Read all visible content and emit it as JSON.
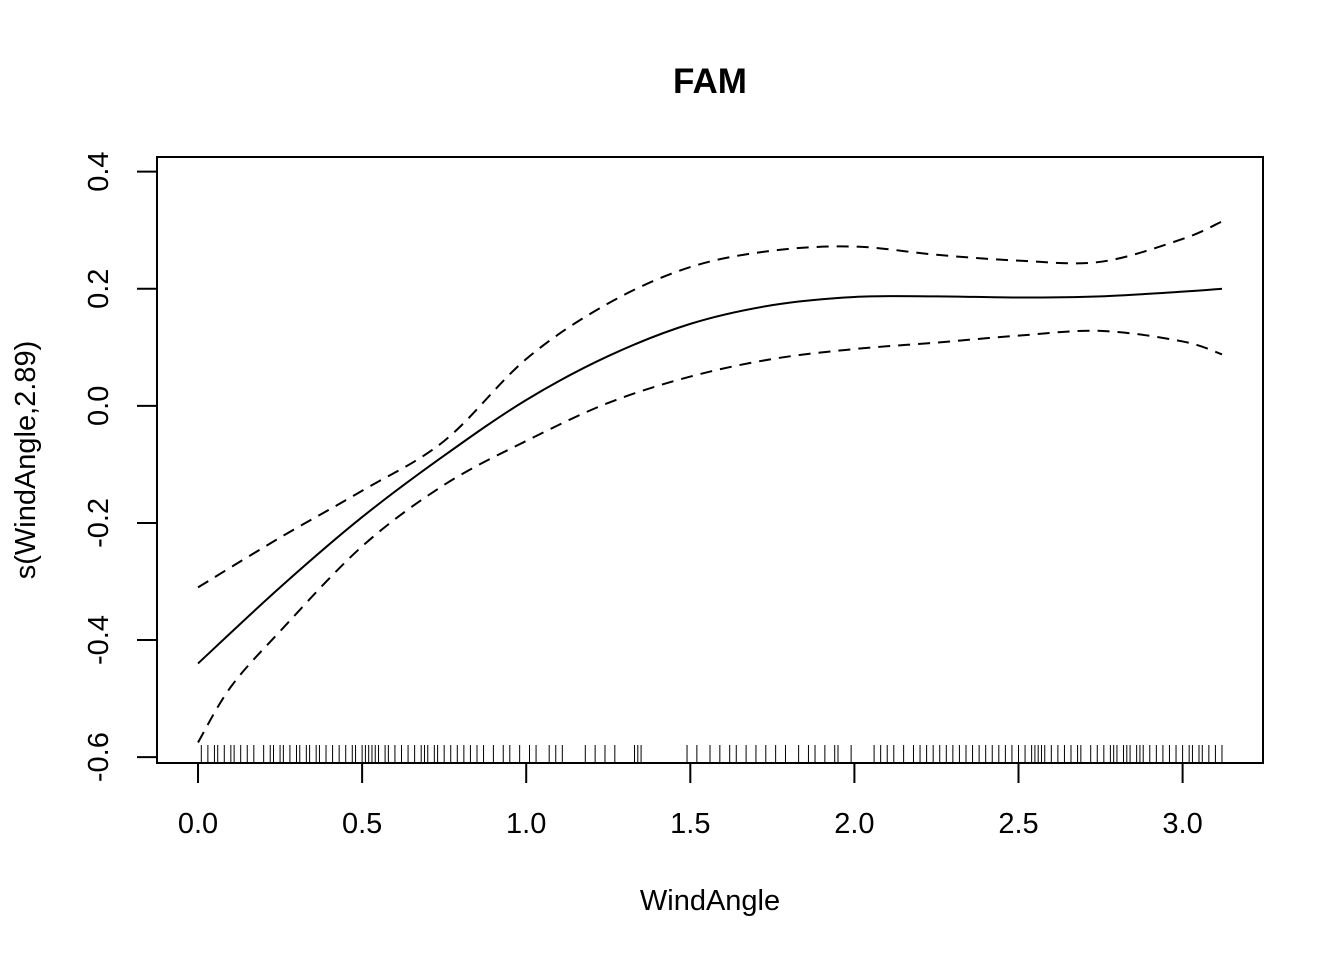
{
  "chart_data": {
    "type": "line",
    "title": "FAM",
    "xlabel": "WindAngle",
    "ylabel": "s(WindAngle,2.89)",
    "xlim": [
      -0.125,
      3.245
    ],
    "ylim": [
      -0.61,
      0.425
    ],
    "x_ticks": [
      "0.0",
      "0.5",
      "1.0",
      "1.5",
      "2.0",
      "2.5",
      "3.0"
    ],
    "x_tick_values": [
      0.0,
      0.5,
      1.0,
      1.5,
      2.0,
      2.5,
      3.0
    ],
    "y_ticks": [
      "-0.6",
      "-0.4",
      "-0.2",
      "0.0",
      "0.2",
      "0.4"
    ],
    "y_tick_values": [
      -0.6,
      -0.4,
      -0.2,
      0.0,
      0.2,
      0.4
    ],
    "grid": false,
    "series": [
      {
        "style": "solid",
        "x": [
          0.0,
          0.25,
          0.5,
          0.75,
          1.0,
          1.25,
          1.5,
          1.75,
          2.0,
          2.25,
          2.5,
          2.75,
          3.0,
          3.12
        ],
        "y": [
          -0.44,
          -0.31,
          -0.19,
          -0.085,
          0.01,
          0.085,
          0.14,
          0.172,
          0.186,
          0.187,
          0.185,
          0.187,
          0.195,
          0.2
        ]
      },
      {
        "style": "dashed",
        "x": [
          0.0,
          0.25,
          0.5,
          0.75,
          1.0,
          1.25,
          1.5,
          1.75,
          2.0,
          2.25,
          2.5,
          2.75,
          3.0,
          3.12
        ],
        "y": [
          -0.31,
          -0.225,
          -0.145,
          -0.06,
          0.08,
          0.175,
          0.237,
          0.265,
          0.272,
          0.258,
          0.248,
          0.246,
          0.285,
          0.315
        ]
      },
      {
        "style": "dashed",
        "x": [
          0.0,
          0.1,
          0.25,
          0.5,
          0.75,
          1.0,
          1.25,
          1.5,
          1.75,
          2.0,
          2.25,
          2.5,
          2.75,
          3.0,
          3.12
        ],
        "y": [
          -0.575,
          -0.48,
          -0.385,
          -0.24,
          -0.135,
          -0.06,
          0.005,
          0.05,
          0.08,
          0.097,
          0.108,
          0.12,
          0.128,
          0.11,
          0.088
        ]
      }
    ],
    "rug": [
      0.01,
      0.03,
      0.05,
      0.06,
      0.08,
      0.1,
      0.11,
      0.13,
      0.15,
      0.17,
      0.2,
      0.22,
      0.23,
      0.25,
      0.26,
      0.28,
      0.3,
      0.31,
      0.33,
      0.34,
      0.36,
      0.37,
      0.39,
      0.41,
      0.43,
      0.45,
      0.47,
      0.48,
      0.5,
      0.51,
      0.52,
      0.53,
      0.54,
      0.55,
      0.57,
      0.58,
      0.6,
      0.62,
      0.64,
      0.66,
      0.68,
      0.69,
      0.7,
      0.72,
      0.73,
      0.75,
      0.77,
      0.79,
      0.81,
      0.83,
      0.85,
      0.87,
      0.9,
      0.93,
      0.95,
      0.98,
      1.01,
      1.03,
      1.07,
      1.09,
      1.11,
      1.18,
      1.21,
      1.24,
      1.27,
      1.33,
      1.34,
      1.35,
      1.49,
      1.52,
      1.56,
      1.59,
      1.62,
      1.64,
      1.67,
      1.7,
      1.73,
      1.76,
      1.79,
      1.83,
      1.86,
      1.88,
      1.91,
      1.94,
      1.95,
      1.99,
      2.06,
      2.08,
      2.1,
      2.12,
      2.15,
      2.18,
      2.2,
      2.22,
      2.24,
      2.26,
      2.28,
      2.3,
      2.32,
      2.34,
      2.36,
      2.38,
      2.4,
      2.42,
      2.44,
      2.46,
      2.48,
      2.5,
      2.52,
      2.54,
      2.55,
      2.56,
      2.57,
      2.58,
      2.6,
      2.62,
      2.64,
      2.66,
      2.68,
      2.69,
      2.72,
      2.74,
      2.76,
      2.78,
      2.79,
      2.8,
      2.82,
      2.83,
      2.84,
      2.86,
      2.87,
      2.88,
      2.9,
      2.92,
      2.94,
      2.96,
      2.98,
      3.0,
      3.02,
      3.03,
      3.05,
      3.06,
      3.08,
      3.1,
      3.12
    ]
  }
}
